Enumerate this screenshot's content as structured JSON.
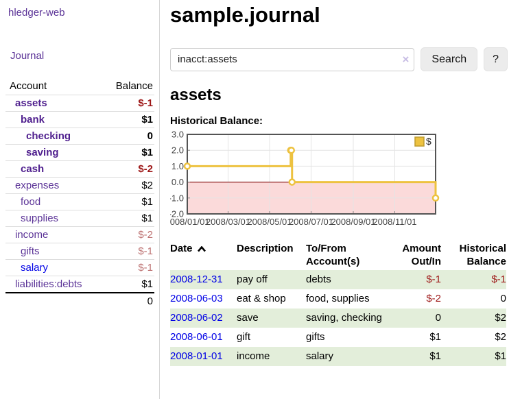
{
  "app": {
    "brand": "hledger-web",
    "nav_journal": "Journal"
  },
  "sidebar": {
    "headers": {
      "account": "Account",
      "balance": "Balance"
    },
    "accounts": [
      {
        "name": "assets",
        "balance": "$-1",
        "depth": 1,
        "bold": true,
        "negative": true,
        "muted": false,
        "unvisited": false
      },
      {
        "name": "bank",
        "balance": "$1",
        "depth": 2,
        "bold": true,
        "negative": false,
        "muted": false,
        "unvisited": false
      },
      {
        "name": "checking",
        "balance": "0",
        "depth": 3,
        "bold": true,
        "negative": false,
        "muted": false,
        "unvisited": false
      },
      {
        "name": "saving",
        "balance": "$1",
        "depth": 3,
        "bold": true,
        "negative": false,
        "muted": false,
        "unvisited": false
      },
      {
        "name": "cash",
        "balance": "$-2",
        "depth": 2,
        "bold": true,
        "negative": true,
        "muted": false,
        "unvisited": false
      },
      {
        "name": "expenses",
        "balance": "$2",
        "depth": 1,
        "bold": false,
        "negative": false,
        "muted": false,
        "unvisited": false
      },
      {
        "name": "food",
        "balance": "$1",
        "depth": 2,
        "bold": false,
        "negative": false,
        "muted": false,
        "unvisited": false
      },
      {
        "name": "supplies",
        "balance": "$1",
        "depth": 2,
        "bold": false,
        "negative": false,
        "muted": false,
        "unvisited": false
      },
      {
        "name": "income",
        "balance": "$-2",
        "depth": 1,
        "bold": false,
        "negative": true,
        "muted": true,
        "unvisited": false
      },
      {
        "name": "gifts",
        "balance": "$-1",
        "depth": 2,
        "bold": false,
        "negative": true,
        "muted": true,
        "unvisited": false
      },
      {
        "name": "salary",
        "balance": "$-1",
        "depth": 2,
        "bold": false,
        "negative": true,
        "muted": true,
        "unvisited": true
      },
      {
        "name": "liabilities:debts",
        "balance": "$1",
        "depth": 1,
        "bold": false,
        "negative": false,
        "muted": false,
        "unvisited": false
      }
    ],
    "total": "0"
  },
  "header": {
    "title": "sample.journal"
  },
  "search": {
    "value": "inacct:assets",
    "clear_icon": "×",
    "button_label": "Search",
    "help_label": "?"
  },
  "account_page": {
    "heading": "assets",
    "chart_label": "Historical Balance:"
  },
  "chart_data": {
    "type": "line",
    "step": true,
    "title": "Historical Balance:",
    "series": [
      {
        "name": "$",
        "color": "#EDC240",
        "points": [
          {
            "date": "2008-01-01",
            "d": 0,
            "v": 1
          },
          {
            "date": "2008-06-01",
            "d": 152,
            "v": 2
          },
          {
            "date": "2008-06-02",
            "d": 153,
            "v": 2
          },
          {
            "date": "2008-06-03",
            "d": 154,
            "v": 0
          },
          {
            "date": "2008-12-31",
            "d": 365,
            "v": -1
          }
        ]
      }
    ],
    "xlim": [
      0,
      365
    ],
    "ylim": [
      -2,
      3
    ],
    "x_ticks": [
      {
        "d": 0,
        "label": "2008/01/01"
      },
      {
        "d": 60,
        "label": "2008/03/01"
      },
      {
        "d": 121,
        "label": "2008/05/01"
      },
      {
        "d": 182,
        "label": "2008/07/01"
      },
      {
        "d": 244,
        "label": "2008/09/01"
      },
      {
        "d": 305,
        "label": "2008/11/01"
      }
    ],
    "y_ticks": [
      3.0,
      2.0,
      1.0,
      0.0,
      -1.0,
      -2.0
    ],
    "legend_position": "top-right",
    "grid": true,
    "colors": {
      "negative_fill": "#fbdada",
      "zero_line": "#8b1c1c",
      "grid": "#e4e4e4",
      "border": "#545454",
      "axis_text": "#444444",
      "marker_fill": "#ffffff",
      "legend_square_border": "#bd9b2f"
    }
  },
  "register": {
    "headers": {
      "date": "Date",
      "description": "Description",
      "accounts": "To/From\nAccount(s)",
      "amount": "Amount\nOut/In",
      "balance": "Historical\nBalance"
    },
    "sort_icon": "sort-ascending",
    "rows": [
      {
        "date": "2008-12-31",
        "description": "pay off",
        "accounts": "debts",
        "amount": "$-1",
        "balance": "$-1"
      },
      {
        "date": "2008-06-03",
        "description": "eat & shop",
        "accounts": "food, supplies",
        "amount": "$-2",
        "balance": "0"
      },
      {
        "date": "2008-06-02",
        "description": "save",
        "accounts": "saving, checking",
        "amount": "0",
        "balance": "$2"
      },
      {
        "date": "2008-06-01",
        "description": "gift",
        "accounts": "gifts",
        "amount": "$1",
        "balance": "$2"
      },
      {
        "date": "2008-01-01",
        "description": "income",
        "accounts": "salary",
        "amount": "$1",
        "balance": "$1"
      }
    ]
  }
}
